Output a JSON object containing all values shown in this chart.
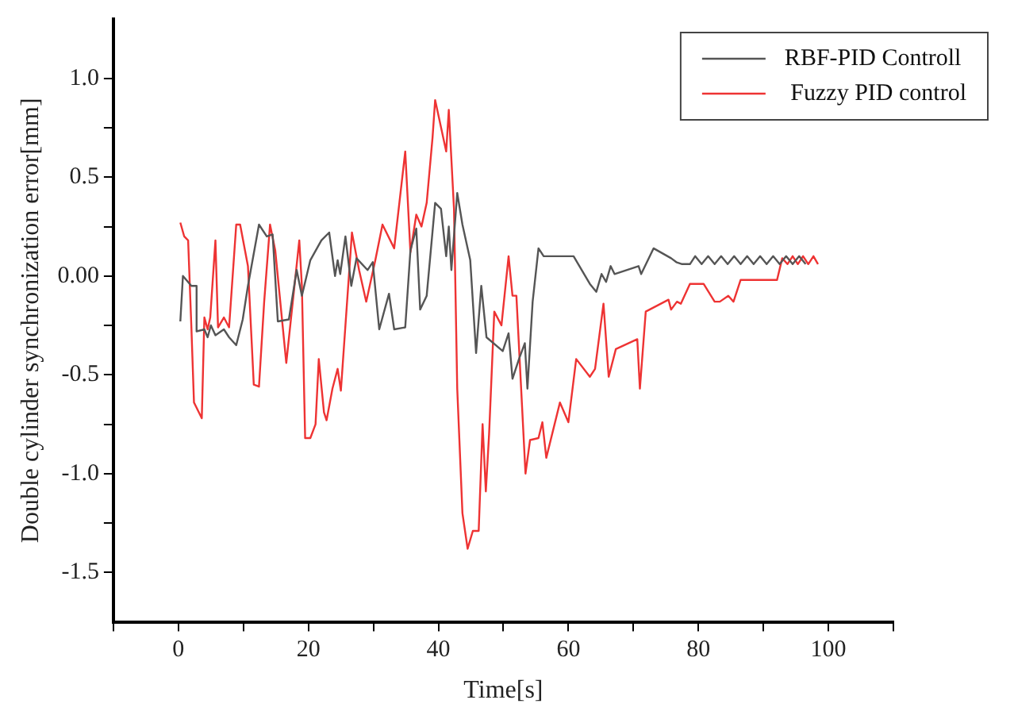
{
  "chart_data": {
    "type": "line",
    "xlabel": "Time[s]",
    "ylabel": "Double cylinder synchronization error[mm]",
    "xlim": [
      -10,
      110
    ],
    "ylim": [
      -1.75,
      1.3
    ],
    "xticks": [
      {
        "value": -10,
        "label": null
      },
      0,
      {
        "value": 10,
        "label": null
      },
      20,
      {
        "value": 30,
        "label": null
      },
      40,
      {
        "value": 50,
        "label": null
      },
      60,
      {
        "value": 70,
        "label": null
      },
      80,
      {
        "value": 90,
        "label": null
      },
      100,
      {
        "value": 110,
        "label": null
      }
    ],
    "yticks": [
      -1.5,
      {
        "value": -1.25,
        "label": null
      },
      {
        "value": -1,
        "label": "-1.0"
      },
      {
        "value": -0.75,
        "label": null
      },
      -0.5,
      {
        "value": -0.25,
        "label": null
      },
      {
        "value": 0,
        "label": "0.00"
      },
      {
        "value": 0.25,
        "label": null
      },
      0.5,
      {
        "value": 0.75,
        "label": null
      },
      {
        "value": 1,
        "label": "1.0"
      }
    ],
    "grid": false,
    "legend": "top right",
    "marker": "none",
    "line_style": "solid",
    "series": [
      {
        "name": "RBF-PID Controll",
        "color": "#555555",
        "x": [
          0.3,
          0.7,
          2,
          2.8,
          2.8,
          4,
          4.5,
          5,
          5.7,
          7,
          7.8,
          8.9,
          9.9,
          10.7,
          12.4,
          13.6,
          14.5,
          15.3,
          17,
          18.2,
          19,
          20.3,
          22,
          23.2,
          24.1,
          24.5,
          24.9,
          25.7,
          26.6,
          27.4,
          29.1,
          29.9,
          30.9,
          32.4,
          33.2,
          34.9,
          35.7,
          36.6,
          37.2,
          38.2,
          39.5,
          40.4,
          41.2,
          41.6,
          42,
          42.9,
          43.7,
          44.9,
          45.8,
          46.6,
          47.4,
          49.9,
          50.8,
          51.4,
          52.4,
          53.3,
          53.7,
          54.5,
          55.4,
          56.2,
          60.8,
          63.3,
          64.3,
          65.1,
          65.8,
          66.5,
          67.1,
          70.8,
          71.2,
          73.1,
          75.8,
          76.6,
          77.5,
          78.7,
          79.5,
          80.5,
          81.5,
          82.5,
          83.5,
          84.5,
          85.5,
          86.5,
          87.5,
          88.5,
          89.5,
          90.5,
          91.5,
          92.5,
          93.5,
          94.5,
          95.5,
          96.5
        ],
        "values": [
          -0.23,
          0,
          -0.05,
          -0.05,
          -0.28,
          -0.27,
          -0.31,
          -0.25,
          -0.3,
          -0.27,
          -0.31,
          -0.35,
          -0.22,
          -0.05,
          0.26,
          0.2,
          0.21,
          -0.23,
          -0.22,
          0.03,
          -0.1,
          0.08,
          0.18,
          0.22,
          0,
          0.08,
          0.01,
          0.2,
          -0.05,
          0.09,
          0.03,
          0.07,
          -0.27,
          -0.09,
          -0.27,
          -0.26,
          0.13,
          0.24,
          -0.17,
          -0.1,
          0.37,
          0.34,
          0.1,
          0.25,
          0.03,
          0.42,
          0.26,
          0.08,
          -0.39,
          -0.05,
          -0.31,
          -0.38,
          -0.29,
          -0.52,
          -0.42,
          -0.34,
          -0.57,
          -0.13,
          0.14,
          0.1,
          0.1,
          -0.04,
          -0.08,
          0.01,
          -0.03,
          0.05,
          0.01,
          0.05,
          0.01,
          0.14,
          0.09,
          0.07,
          0.06,
          0.06,
          0.1,
          0.06,
          0.1,
          0.06,
          0.1,
          0.06,
          0.1,
          0.06,
          0.1,
          0.06,
          0.1,
          0.06,
          0.1,
          0.06,
          0.1,
          0.06,
          0.1,
          0.06
        ]
      },
      {
        "name": " Fuzzy PID control",
        "color": "#ee3333",
        "x": [
          0.3,
          0.9,
          1.5,
          2,
          2.4,
          3.6,
          4,
          4.5,
          4.9,
          5.7,
          6.1,
          7,
          7.8,
          8.9,
          9.5,
          10.7,
          11.6,
          12.4,
          13.2,
          14.1,
          14.9,
          16.6,
          18.6,
          19,
          19.5,
          20.3,
          21.1,
          21.6,
          22.4,
          22.8,
          23.7,
          24.5,
          25,
          25.7,
          26.7,
          27.8,
          28.9,
          30.3,
          31.4,
          33.2,
          34.9,
          35.7,
          36.6,
          37.4,
          38.2,
          39.1,
          39.5,
          41.2,
          41.6,
          42.4,
          42.9,
          43.7,
          44.5,
          45.3,
          46.2,
          46.8,
          47.3,
          47.8,
          48.6,
          49.7,
          50.8,
          51.4,
          52,
          53.4,
          54.1,
          55.4,
          56,
          56.6,
          58.7,
          60,
          61.2,
          63.3,
          64.1,
          65.4,
          66.2,
          67.3,
          70.6,
          71,
          71.9,
          75.4,
          75.8,
          76.7,
          77.3,
          78.7,
          80.8,
          82.5,
          83.3,
          84.6,
          85.4,
          86.5,
          92.1,
          92.9,
          93.7,
          94.5,
          95.3,
          96.1,
          96.9,
          97.7,
          98.4
        ],
        "values": [
          0.27,
          0.2,
          0.18,
          -0.26,
          -0.64,
          -0.72,
          -0.21,
          -0.27,
          -0.21,
          0.18,
          -0.26,
          -0.21,
          -0.26,
          0.26,
          0.26,
          0.05,
          -0.55,
          -0.56,
          -0.13,
          0.26,
          0.13,
          -0.44,
          0.18,
          -0.05,
          -0.82,
          -0.82,
          -0.75,
          -0.42,
          -0.69,
          -0.73,
          -0.57,
          -0.47,
          -0.58,
          -0.25,
          0.22,
          0.03,
          -0.13,
          0.08,
          0.26,
          0.14,
          0.63,
          0.12,
          0.31,
          0.25,
          0.37,
          0.7,
          0.89,
          0.63,
          0.84,
          0.34,
          -0.57,
          -1.2,
          -1.38,
          -1.29,
          -1.29,
          -0.75,
          -1.09,
          -0.8,
          -0.18,
          -0.25,
          0.1,
          -0.1,
          -0.1,
          -1,
          -0.83,
          -0.82,
          -0.74,
          -0.92,
          -0.64,
          -0.74,
          -0.42,
          -0.51,
          -0.47,
          -0.14,
          -0.51,
          -0.37,
          -0.32,
          -0.57,
          -0.18,
          -0.12,
          -0.17,
          -0.13,
          -0.14,
          -0.04,
          -0.04,
          -0.13,
          -0.13,
          -0.1,
          -0.13,
          -0.02,
          -0.02,
          0.09,
          0.06,
          0.1,
          0.06,
          0.1,
          0.06,
          0.1,
          0.06
        ]
      }
    ]
  }
}
